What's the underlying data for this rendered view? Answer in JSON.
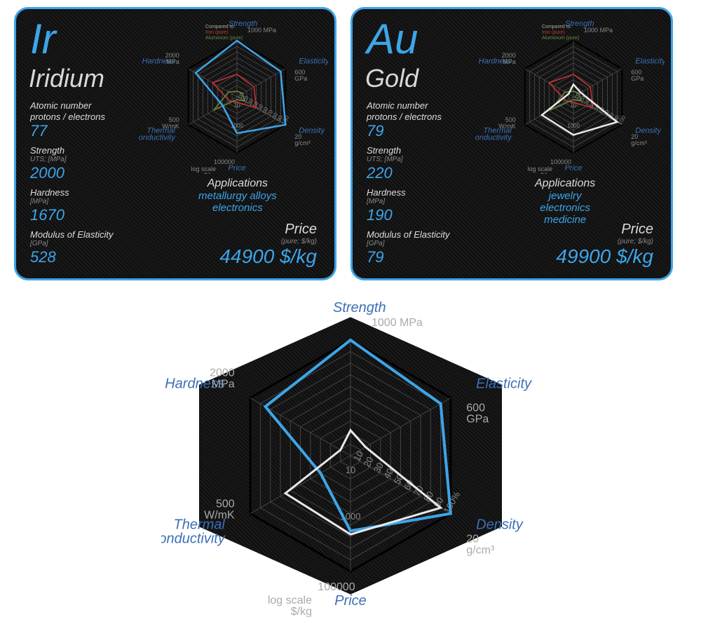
{
  "elements": [
    {
      "symbol": "Ir",
      "name": "Iridium",
      "atomic_label": "Atomic number\nprotons / electrons",
      "atomic_value": "77",
      "strength_label": "Strength",
      "strength_sub": "UTS; [MPa]",
      "strength_value": "2000",
      "hardness_label": "Hardness",
      "hardness_sub": "[MPa]",
      "hardness_value": "1670",
      "modulus_label": "Modulus of Elasticity",
      "modulus_sub": "[GPa]",
      "modulus_value": "528",
      "apps_title": "Applications",
      "apps_lines": "metallurgy alloys\nelectronics",
      "price_title": "Price",
      "price_sub": "(pure; $/kg)",
      "price_value": "44900 $/kg",
      "radar_color": "#3da5e8",
      "radar_values": [
        100,
        90,
        100,
        65,
        30,
        85
      ]
    },
    {
      "symbol": "Au",
      "name": "Gold",
      "atomic_label": "Atomic number\nprotons / electrons",
      "atomic_value": "79",
      "strength_label": "Strength",
      "strength_sub": "UTS; [MPa]",
      "strength_value": "220",
      "hardness_label": "Hardness",
      "hardness_sub": "[MPa]",
      "hardness_value": "190",
      "modulus_label": "Modulus of Elasticity",
      "modulus_sub": "[GPa]",
      "modulus_value": "79",
      "apps_title": "Applications",
      "apps_lines": "jewelry\nelectronics\nmedicine",
      "price_title": "Price",
      "price_sub": "(pure; $/kg)",
      "price_value": "49900 $/kg",
      "radar_color": "#e8e8e8",
      "radar_values": [
        22,
        15,
        90,
        68,
        65,
        10
      ]
    }
  ],
  "radar": {
    "axes": [
      "Strength",
      "Elasticity",
      "Density",
      "Price",
      "Thermal\nConductivity",
      "Hardness"
    ],
    "axis_units": [
      "1000 MPa",
      "600\nGPa",
      "20\ng/cm³",
      "100000",
      "500\nW/mK",
      "2000\nMPa"
    ],
    "axis_extra": [
      "",
      "",
      "",
      "log scale\n$/kg",
      "",
      ""
    ],
    "rings": [
      "10",
      "20",
      "30",
      "40",
      "50",
      "60",
      "70",
      "80",
      "90",
      "100%"
    ],
    "ring_bottom": "1000",
    "grid_color": "#444",
    "outer_color": "#000",
    "compare_label": "Compared to:",
    "compare_items": [
      {
        "label": "Iron (pure)",
        "color": "#cc3333",
        "values": [
          40,
          35,
          40,
          10,
          15,
          50
        ]
      },
      {
        "label": "Aluminium (pure)",
        "color": "#6a8a3a",
        "values": [
          10,
          12,
          15,
          5,
          48,
          17
        ]
      }
    ]
  },
  "big_chart": {
    "series": [
      {
        "color": "#3da5e8",
        "width": 4,
        "values": [
          100,
          90,
          100,
          65,
          30,
          85
        ]
      },
      {
        "color": "#e8e8e8",
        "width": 3,
        "values": [
          22,
          15,
          90,
          68,
          65,
          10
        ]
      }
    ]
  },
  "colors": {
    "accent": "#3da5e8",
    "card_bg": "#151515",
    "text_light": "#d8d8d8",
    "text_dim": "#888888"
  }
}
